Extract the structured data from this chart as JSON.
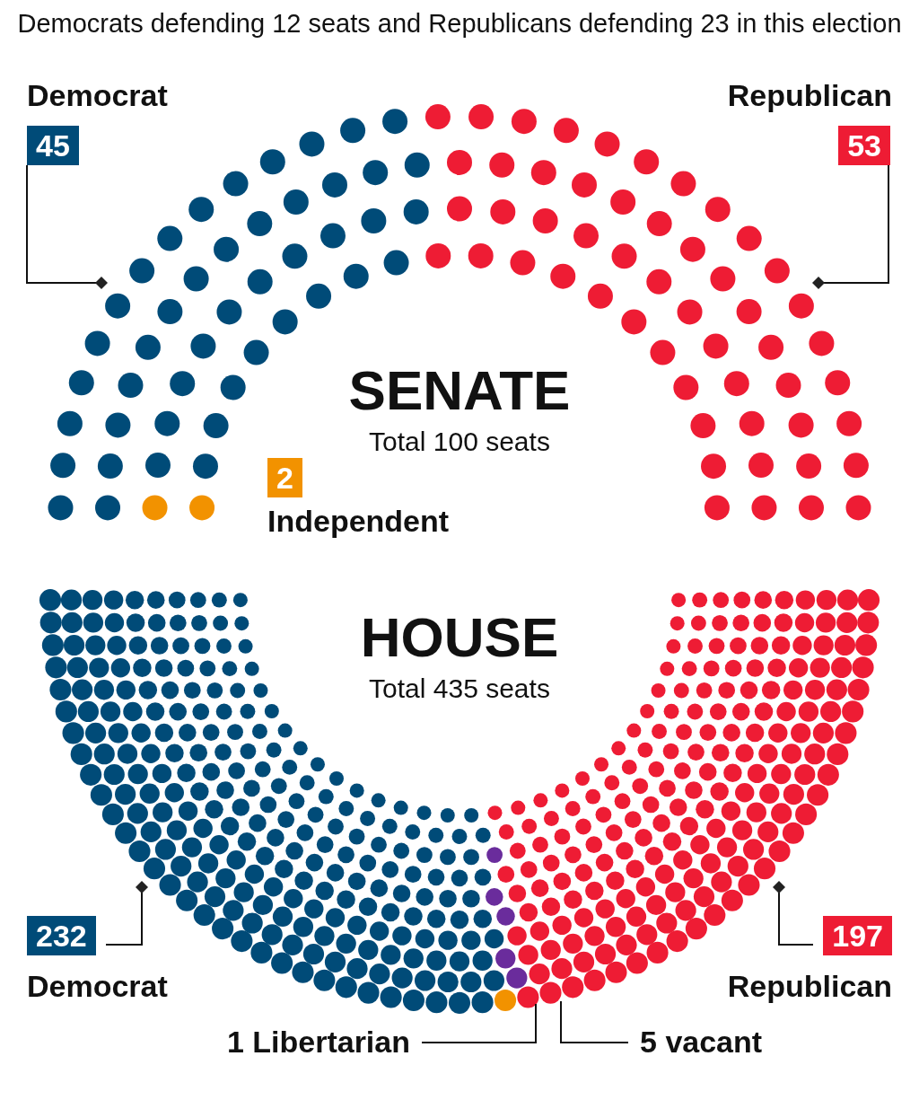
{
  "chart_data": [
    {
      "type": "other",
      "title": "SENATE",
      "subtitle": "Total 100 seats",
      "annotations": [
        "Democrats defending 12 seats and Republicans defending 23 in this election"
      ],
      "categories": [
        "Democrat",
        "Independent",
        "Republican"
      ],
      "values": [
        45,
        2,
        53
      ],
      "colors": [
        "#004b78",
        "#f29200",
        "#ee1c34"
      ],
      "data_labels": true
    },
    {
      "type": "other",
      "title": "HOUSE",
      "subtitle": "Total 435 seats",
      "categories": [
        "Democrat",
        "Libertarian",
        "vacant",
        "Republican"
      ],
      "values": [
        232,
        1,
        5,
        197
      ],
      "colors": [
        "#004b78",
        "#f29200",
        "#6a2c9c",
        "#ee1c34"
      ],
      "data_labels": true
    }
  ]
}
